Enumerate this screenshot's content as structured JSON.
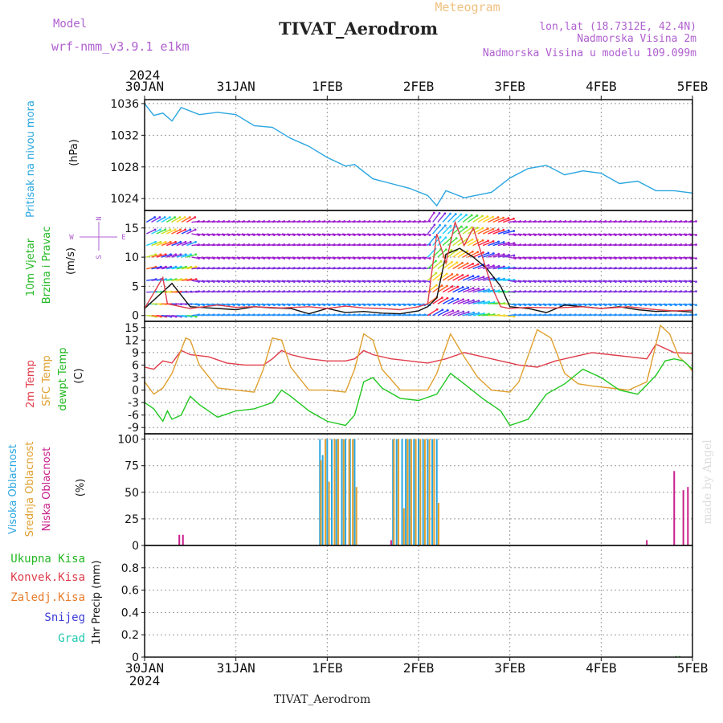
{
  "header": {
    "title": "TIVAT_Aerodrom",
    "model_label": "Model",
    "model_value": "wrf-nmm_v3.9.1 e1km",
    "meteogram": "Meteogram",
    "lonlat": "lon,lat (18.7312E, 42.4N)",
    "elevation": "Nadmorska Visina 2m",
    "model_elevation": "Nadmorska Visina u modelu 109.099m",
    "footer": "TIVAT_Aerodrom",
    "watermark": "made by Angel"
  },
  "time_axis": {
    "year": "2024",
    "labels": [
      "30JAN",
      "31JAN",
      "1FEB",
      "2FEB",
      "3FEB",
      "4FEB",
      "5FEB"
    ]
  },
  "colors": {
    "pressure": "#2aa6e0",
    "sfc_temp": "#e0a030",
    "temp2m": "#e03c4a",
    "dewpoint": "#22c822",
    "high_cloud": "#2aa6e0",
    "mid_cloud": "#e0a030",
    "low_cloud": "#c81e8c",
    "wind_speed": "#111111",
    "gust": "#e03c4a"
  },
  "chart_data": [
    {
      "type": "line",
      "panel": "pressure",
      "ylabel_left": "Pritisak na nivou mora",
      "ylabel_unit": "(hPa)",
      "ylim": [
        1022.5,
        1036.5
      ],
      "yticks": [
        1024,
        1028,
        1032,
        1036
      ],
      "grid": true,
      "series": [
        {
          "color": "#2aa6e0",
          "x_days": [
            0,
            0.1,
            0.2,
            0.3,
            0.4,
            0.6,
            0.8,
            1.0,
            1.2,
            1.4,
            1.6,
            1.8,
            2.0,
            2.2,
            2.3,
            2.5,
            2.7,
            2.9,
            3.1,
            3.2,
            3.3,
            3.5,
            3.8,
            4.0,
            4.2,
            4.4,
            4.6,
            4.8,
            5.0,
            5.2,
            5.4,
            5.6,
            5.8,
            6.0
          ],
          "y": [
            1036.0,
            1034.5,
            1034.8,
            1033.8,
            1035.5,
            1034.6,
            1034.9,
            1034.6,
            1033.2,
            1033.0,
            1031.6,
            1030.6,
            1029.2,
            1028.1,
            1028.3,
            1026.5,
            1025.9,
            1025.3,
            1024.4,
            1023.1,
            1025.0,
            1024.1,
            1024.8,
            1026.6,
            1027.8,
            1028.2,
            1027.0,
            1027.5,
            1027.2,
            1025.9,
            1026.2,
            1025.0,
            1025.0,
            1024.7
          ]
        }
      ]
    },
    {
      "type": "line",
      "panel": "wind",
      "ylabel_left": "10m Vjetar",
      "ylabel_left2": "Brzina i Pravac",
      "ylabel_unit": "(m/s)",
      "compass": [
        "N",
        "E",
        "S",
        "W"
      ],
      "ylim": [
        -1,
        18
      ],
      "yticks": [
        0,
        5,
        10,
        15
      ],
      "grid": true,
      "series": [
        {
          "color": "#111111",
          "x_days": [
            0,
            0.3,
            0.5,
            0.8,
            1.0,
            1.2,
            1.4,
            1.6,
            1.8,
            2.0,
            2.2,
            2.4,
            2.6,
            2.8,
            3.0,
            3.1,
            3.2,
            3.3,
            3.45,
            3.6,
            3.75,
            3.9,
            4.0,
            4.2,
            4.4,
            4.6,
            4.8,
            5.0,
            5.2,
            5.4,
            5.6,
            5.8,
            6.0
          ],
          "y": [
            1.2,
            5.5,
            1.5,
            1.2,
            1.0,
            1.5,
            1.3,
            1.2,
            0.3,
            1.2,
            0.5,
            0.7,
            0.4,
            0.3,
            0.8,
            1.5,
            3.0,
            10.5,
            11.5,
            10.0,
            8.0,
            5.0,
            1.5,
            1.2,
            0.5,
            1.8,
            1.5,
            1.2,
            1.5,
            1.0,
            0.7,
            0.8,
            0.6
          ]
        },
        {
          "color": "#e03c4a",
          "x_days": [
            0,
            0.2,
            0.25,
            0.4,
            0.5,
            0.8,
            1.0,
            1.2,
            1.5,
            1.8,
            2.0,
            2.2,
            2.4,
            2.6,
            2.8,
            3.0,
            3.1,
            3.2,
            3.3,
            3.4,
            3.5,
            3.6,
            3.7,
            3.8,
            3.9,
            4.0,
            4.2,
            4.5,
            4.8,
            5.0,
            5.3,
            5.6,
            5.8,
            6.0
          ],
          "y": [
            1.2,
            6.5,
            2.0,
            1.5,
            1.2,
            1.8,
            1.4,
            1.5,
            1.3,
            1.5,
            1.2,
            1.6,
            1.3,
            1.2,
            1.0,
            1.5,
            2.0,
            14.0,
            9.0,
            16.0,
            12.0,
            15.0,
            10.0,
            5.0,
            1.5,
            1.2,
            1.4,
            1.3,
            1.5,
            1.2,
            1.5,
            1.0,
            0.8,
            0.9
          ]
        }
      ]
    },
    {
      "type": "line",
      "panel": "temperature",
      "ylabel_left": "2m Temp",
      "ylabel_left2": "SFC Temp",
      "ylabel_left3": "dewpt Temp",
      "ylabel_unit": "(C)",
      "ylim": [
        -10.5,
        16.5
      ],
      "yticks": [
        -9,
        -6,
        -3,
        0,
        3,
        6,
        9,
        12,
        15
      ],
      "grid": true,
      "series": [
        {
          "color": "#e03c4a",
          "x_days": [
            0,
            0.1,
            0.2,
            0.3,
            0.4,
            0.5,
            0.7,
            0.9,
            1.1,
            1.3,
            1.4,
            1.5,
            1.6,
            1.8,
            2.0,
            2.2,
            2.3,
            2.4,
            2.5,
            2.7,
            2.9,
            3.1,
            3.3,
            3.5,
            3.7,
            3.9,
            4.1,
            4.3,
            4.5,
            4.7,
            4.9,
            5.1,
            5.3,
            5.5,
            5.6,
            5.8,
            6.0
          ],
          "y": [
            5.5,
            5.0,
            7.0,
            6.5,
            9.5,
            8.5,
            8.0,
            6.5,
            6.0,
            6.0,
            7.5,
            9.5,
            8.5,
            7.5,
            7.0,
            7.0,
            7.5,
            9.5,
            8.5,
            7.5,
            7.0,
            6.5,
            7.5,
            9.0,
            8.0,
            7.0,
            6.0,
            5.5,
            7.0,
            8.0,
            9.0,
            8.5,
            8.0,
            7.5,
            11.0,
            9.0,
            8.8
          ]
        },
        {
          "color": "#e0a030",
          "x_days": [
            0,
            0.1,
            0.2,
            0.3,
            0.45,
            0.5,
            0.6,
            0.8,
            1.0,
            1.2,
            1.3,
            1.4,
            1.5,
            1.6,
            1.8,
            2.0,
            2.2,
            2.3,
            2.4,
            2.5,
            2.6,
            2.8,
            3.0,
            3.1,
            3.2,
            3.35,
            3.5,
            3.65,
            3.8,
            4.0,
            4.1,
            4.3,
            4.45,
            4.6,
            4.75,
            4.9,
            5.1,
            5.3,
            5.5,
            5.65,
            5.75,
            5.85,
            5.95,
            6.0
          ],
          "y": [
            2.0,
            -1.0,
            0.5,
            4.0,
            12.5,
            12.0,
            6.0,
            0.5,
            0.0,
            -0.5,
            5.0,
            12.5,
            12.0,
            5.5,
            0.0,
            0.0,
            -0.5,
            5.0,
            13.5,
            12.0,
            5.0,
            0.0,
            0.0,
            0.0,
            4.0,
            13.5,
            8.0,
            3.0,
            0.0,
            -0.5,
            2.0,
            14.5,
            12.5,
            4.0,
            1.5,
            1.0,
            0.5,
            0.0,
            2.0,
            15.5,
            13.5,
            8.0,
            6.0,
            4.5
          ]
        },
        {
          "color": "#22c822",
          "x_days": [
            0,
            0.1,
            0.2,
            0.25,
            0.3,
            0.4,
            0.5,
            0.6,
            0.8,
            1.0,
            1.2,
            1.4,
            1.5,
            1.6,
            1.8,
            2.0,
            2.2,
            2.3,
            2.4,
            2.5,
            2.6,
            2.8,
            3.0,
            3.2,
            3.35,
            3.5,
            3.7,
            3.9,
            4.0,
            4.2,
            4.4,
            4.6,
            4.8,
            5.0,
            5.2,
            5.4,
            5.6,
            5.7,
            5.8,
            5.9,
            6.0
          ],
          "y": [
            -3.0,
            -4.5,
            -7.5,
            -5.0,
            -7.0,
            -6.0,
            -1.5,
            -3.5,
            -6.5,
            -5.0,
            -4.5,
            -3.0,
            0.0,
            -1.5,
            -5.0,
            -7.5,
            -8.5,
            -6.0,
            2.0,
            3.0,
            0.5,
            -2.0,
            -2.5,
            -1.0,
            4.0,
            1.5,
            -2.0,
            -5.0,
            -8.5,
            -7.0,
            -1.0,
            1.5,
            5.0,
            3.0,
            0.0,
            -1.0,
            3.5,
            7.0,
            7.5,
            7.0,
            5.0
          ]
        }
      ]
    },
    {
      "type": "bar",
      "panel": "clouds",
      "ylabel_left": "Visoka Oblacnost",
      "ylabel_left2": "Srednja Oblacnost",
      "ylabel_left3": "Niska Oblacnost",
      "ylabel_unit": "(%)",
      "ylim": [
        0,
        105
      ],
      "yticks": [
        0,
        25,
        50,
        75,
        100
      ],
      "grid": true,
      "series": [
        {
          "color": "#2aa6e0",
          "x_days": [
            1.92,
            1.95,
            2.0,
            2.05,
            2.1,
            2.16,
            2.2,
            2.25,
            2.3,
            2.72,
            2.76,
            2.82,
            2.86,
            2.9,
            2.95,
            3.0,
            3.05,
            3.1,
            3.15,
            3.2
          ],
          "y": [
            100,
            85,
            100,
            100,
            100,
            100,
            100,
            100,
            100,
            100,
            100,
            100,
            100,
            100,
            100,
            100,
            100,
            100,
            100,
            100
          ]
        },
        {
          "color": "#e0a030",
          "x_days": [
            1.93,
            1.98,
            2.02,
            2.08,
            2.12,
            2.18,
            2.24,
            2.28,
            2.32,
            2.73,
            2.78,
            2.84,
            2.88,
            2.92,
            2.97,
            3.02,
            3.07,
            3.12,
            3.17,
            3.22
          ],
          "y": [
            80,
            100,
            60,
            100,
            100,
            100,
            100,
            100,
            55,
            100,
            100,
            35,
            100,
            100,
            100,
            100,
            100,
            100,
            100,
            40
          ]
        },
        {
          "color": "#c81e8c",
          "x_days": [
            0.38,
            0.42,
            2.7,
            5.5,
            5.8,
            5.9,
            5.95
          ],
          "y": [
            10,
            10,
            5,
            5,
            70,
            52,
            55
          ]
        }
      ]
    },
    {
      "type": "bar",
      "panel": "precipitation",
      "legend": [
        "Ukupna Kisa",
        "Konvek.Kisa",
        "Zaledj.Kisa",
        "Snijeg",
        "Grad"
      ],
      "legend_colors": [
        "#22b822",
        "#e03c4a",
        "#e87b2a",
        "#3c3cd8",
        "#22c8b0"
      ],
      "ylabel_unit": "1hr Precip (mm)",
      "ylim": [
        0,
        1.0
      ],
      "yticks": [
        0,
        0.2,
        0.4,
        0.6,
        0.8
      ],
      "grid": true,
      "series": [
        {
          "color": "#22b822",
          "x_days": [
            5.82,
            5.86
          ],
          "y": [
            0.01,
            0.01
          ]
        }
      ]
    }
  ]
}
